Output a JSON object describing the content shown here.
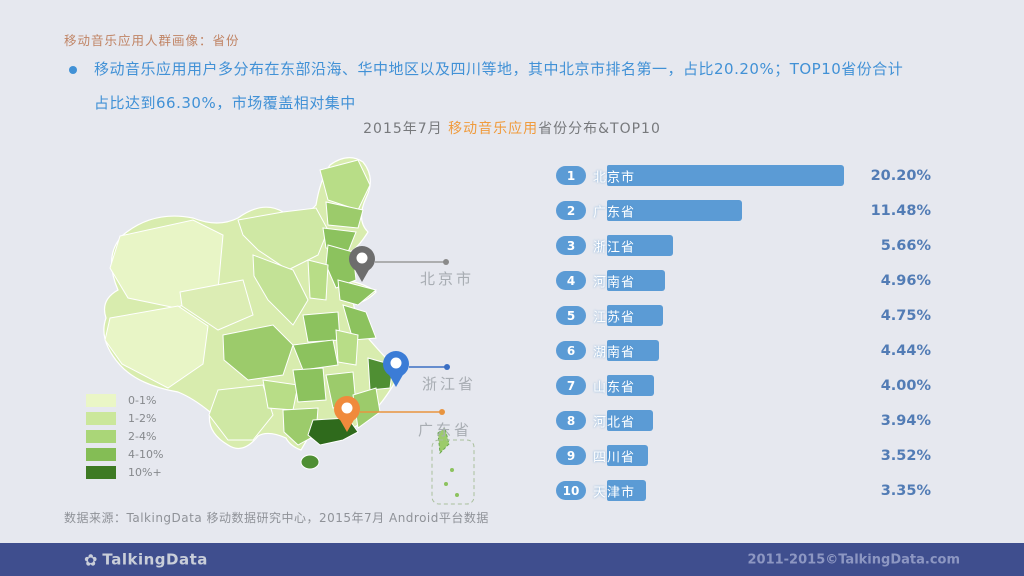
{
  "page": {
    "header": "移动音乐应用人群画像：省份",
    "bullet_line1": "移动音乐应用用户多分布在东部沿海、华中地区以及四川等地，其中北京市排名第一，占比20.20%；TOP10省份合计",
    "bullet_line2": "占比达到66.30%，市场覆盖相对集中",
    "chart_title": {
      "prefix": "2015年7月 ",
      "highlight": "移动音乐应用",
      "suffix": "省份分布&TOP10"
    },
    "source": "数据来源：TalkingData 移动数据研究中心，2015年7月 Android平台数据"
  },
  "chart_data": {
    "type": "bar",
    "orientation": "horizontal",
    "title": "2015年7月 移动音乐应用省份分布&TOP10",
    "categories": [
      "北京市",
      "广东省",
      "浙江省",
      "河南省",
      "江苏省",
      "湖南省",
      "山东省",
      "河北省",
      "四川省",
      "天津市"
    ],
    "values": [
      20.2,
      11.48,
      5.66,
      4.96,
      4.75,
      4.44,
      4.0,
      3.94,
      3.52,
      3.35
    ],
    "value_labels": [
      "20.20%",
      "11.48%",
      "5.66%",
      "4.96%",
      "4.75%",
      "4.44%",
      "4.00%",
      "3.94%",
      "3.52%",
      "3.35%"
    ],
    "unit": "%",
    "xlim": [
      0,
      21
    ],
    "bar_color": "#5b9bd5",
    "top10_total": "66.30%"
  },
  "ranking": {
    "rows": [
      {
        "rank": "1",
        "label": "北京市",
        "value": 20.2,
        "pct": "20.20%"
      },
      {
        "rank": "2",
        "label": "广东省",
        "value": 11.48,
        "pct": "11.48%"
      },
      {
        "rank": "3",
        "label": "浙江省",
        "value": 5.66,
        "pct": "5.66%"
      },
      {
        "rank": "4",
        "label": "河南省",
        "value": 4.96,
        "pct": "4.96%"
      },
      {
        "rank": "5",
        "label": "江苏省",
        "value": 4.75,
        "pct": "4.75%"
      },
      {
        "rank": "6",
        "label": "湖南省",
        "value": 4.44,
        "pct": "4.44%"
      },
      {
        "rank": "7",
        "label": "山东省",
        "value": 4.0,
        "pct": "4.00%"
      },
      {
        "rank": "8",
        "label": "河北省",
        "value": 3.94,
        "pct": "3.94%"
      },
      {
        "rank": "9",
        "label": "四川省",
        "value": 3.52,
        "pct": "3.52%"
      },
      {
        "rank": "10",
        "label": "天津市",
        "value": 3.35,
        "pct": "3.35%"
      }
    ]
  },
  "map": {
    "legend": [
      {
        "label": "0-1%",
        "color": "#eaf6c6"
      },
      {
        "label": "1-2%",
        "color": "#cbe79b"
      },
      {
        "label": "2-4%",
        "color": "#aad678"
      },
      {
        "label": "4-10%",
        "color": "#84bd55"
      },
      {
        "label": "10%+",
        "color": "#3d7a23"
      }
    ],
    "pins": [
      {
        "label": "北京市",
        "color": "#6d6d6d"
      },
      {
        "label": "浙江省",
        "color": "#3b7cd6"
      },
      {
        "label": "广东省",
        "color": "#f08a3c"
      }
    ]
  },
  "footer": {
    "logo": "TalkingData",
    "copyright": "2011-2015©TalkingData.com"
  }
}
